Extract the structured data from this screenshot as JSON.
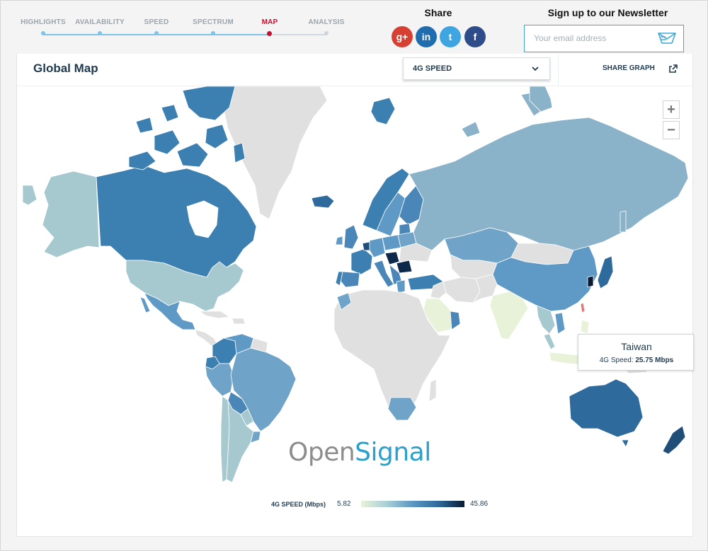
{
  "nav": {
    "steps": [
      {
        "label": "HIGHLIGHTS",
        "state": "done"
      },
      {
        "label": "AVAILABILITY",
        "state": "done"
      },
      {
        "label": "SPEED",
        "state": "done"
      },
      {
        "label": "SPECTRUM",
        "state": "done"
      },
      {
        "label": "MAP",
        "state": "active"
      },
      {
        "label": "ANALYSIS",
        "state": "inactive"
      }
    ]
  },
  "share": {
    "title": "Share",
    "buttons": [
      {
        "icon": "google-plus-icon",
        "glyph": "g+",
        "color": "#d64032"
      },
      {
        "icon": "linkedin-icon",
        "glyph": "in",
        "color": "#1f6cae"
      },
      {
        "icon": "twitter-icon",
        "glyph": "t",
        "color": "#3ea5e0"
      },
      {
        "icon": "facebook-icon",
        "glyph": "f",
        "color": "#2f4c8a"
      }
    ]
  },
  "newsletter": {
    "title": "Sign up to our Newsletter",
    "placeholder": "Your email address"
  },
  "panel": {
    "title": "Global Map",
    "metric": "4G SPEED",
    "share_graph": "SHARE GRAPH"
  },
  "zoom": {
    "in": "+",
    "out": "−"
  },
  "tooltip": {
    "country": "Taiwan",
    "metric_label": "4G Speed:",
    "value": "25.75 Mbps"
  },
  "logo": {
    "part1": "Open",
    "part2": "Signal"
  },
  "legend": {
    "label": "4G SPEED (Mbps)",
    "min": "5.82",
    "max": "45.86"
  },
  "colors": {
    "accent": "#3ea8d8",
    "active_step": "#c8102e",
    "no_data": "#e2e2e2"
  }
}
